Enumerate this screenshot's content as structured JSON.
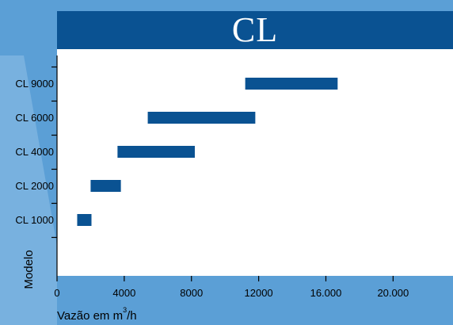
{
  "chart_data": {
    "type": "bar",
    "orientation": "horizontal-range",
    "title": "CL",
    "ylabel": "Modelo",
    "xlabel": "Vazão em m³/h",
    "xlabel_main": "Vazão em m",
    "xlabel_sup": "3",
    "xlabel_tail": "/h",
    "xlim": [
      0,
      23000
    ],
    "x_ticks": [
      0,
      4000,
      8000,
      12000,
      16000,
      20000
    ],
    "x_tick_labels": [
      "0",
      "4000",
      "8000",
      "12000",
      "16.000",
      "20.000"
    ],
    "categories": [
      "CL 1000",
      "CL 2000",
      "CL 4000",
      "CL 6000",
      "CL 9000"
    ],
    "ranges": [
      [
        1200,
        2050
      ],
      [
        2000,
        3800
      ],
      [
        3600,
        8200
      ],
      [
        5400,
        11800
      ],
      [
        11200,
        16700
      ]
    ],
    "bar_color": "#0a5292",
    "title_bg": "#0a5292",
    "background": "#5b9fd6",
    "grid": false
  }
}
